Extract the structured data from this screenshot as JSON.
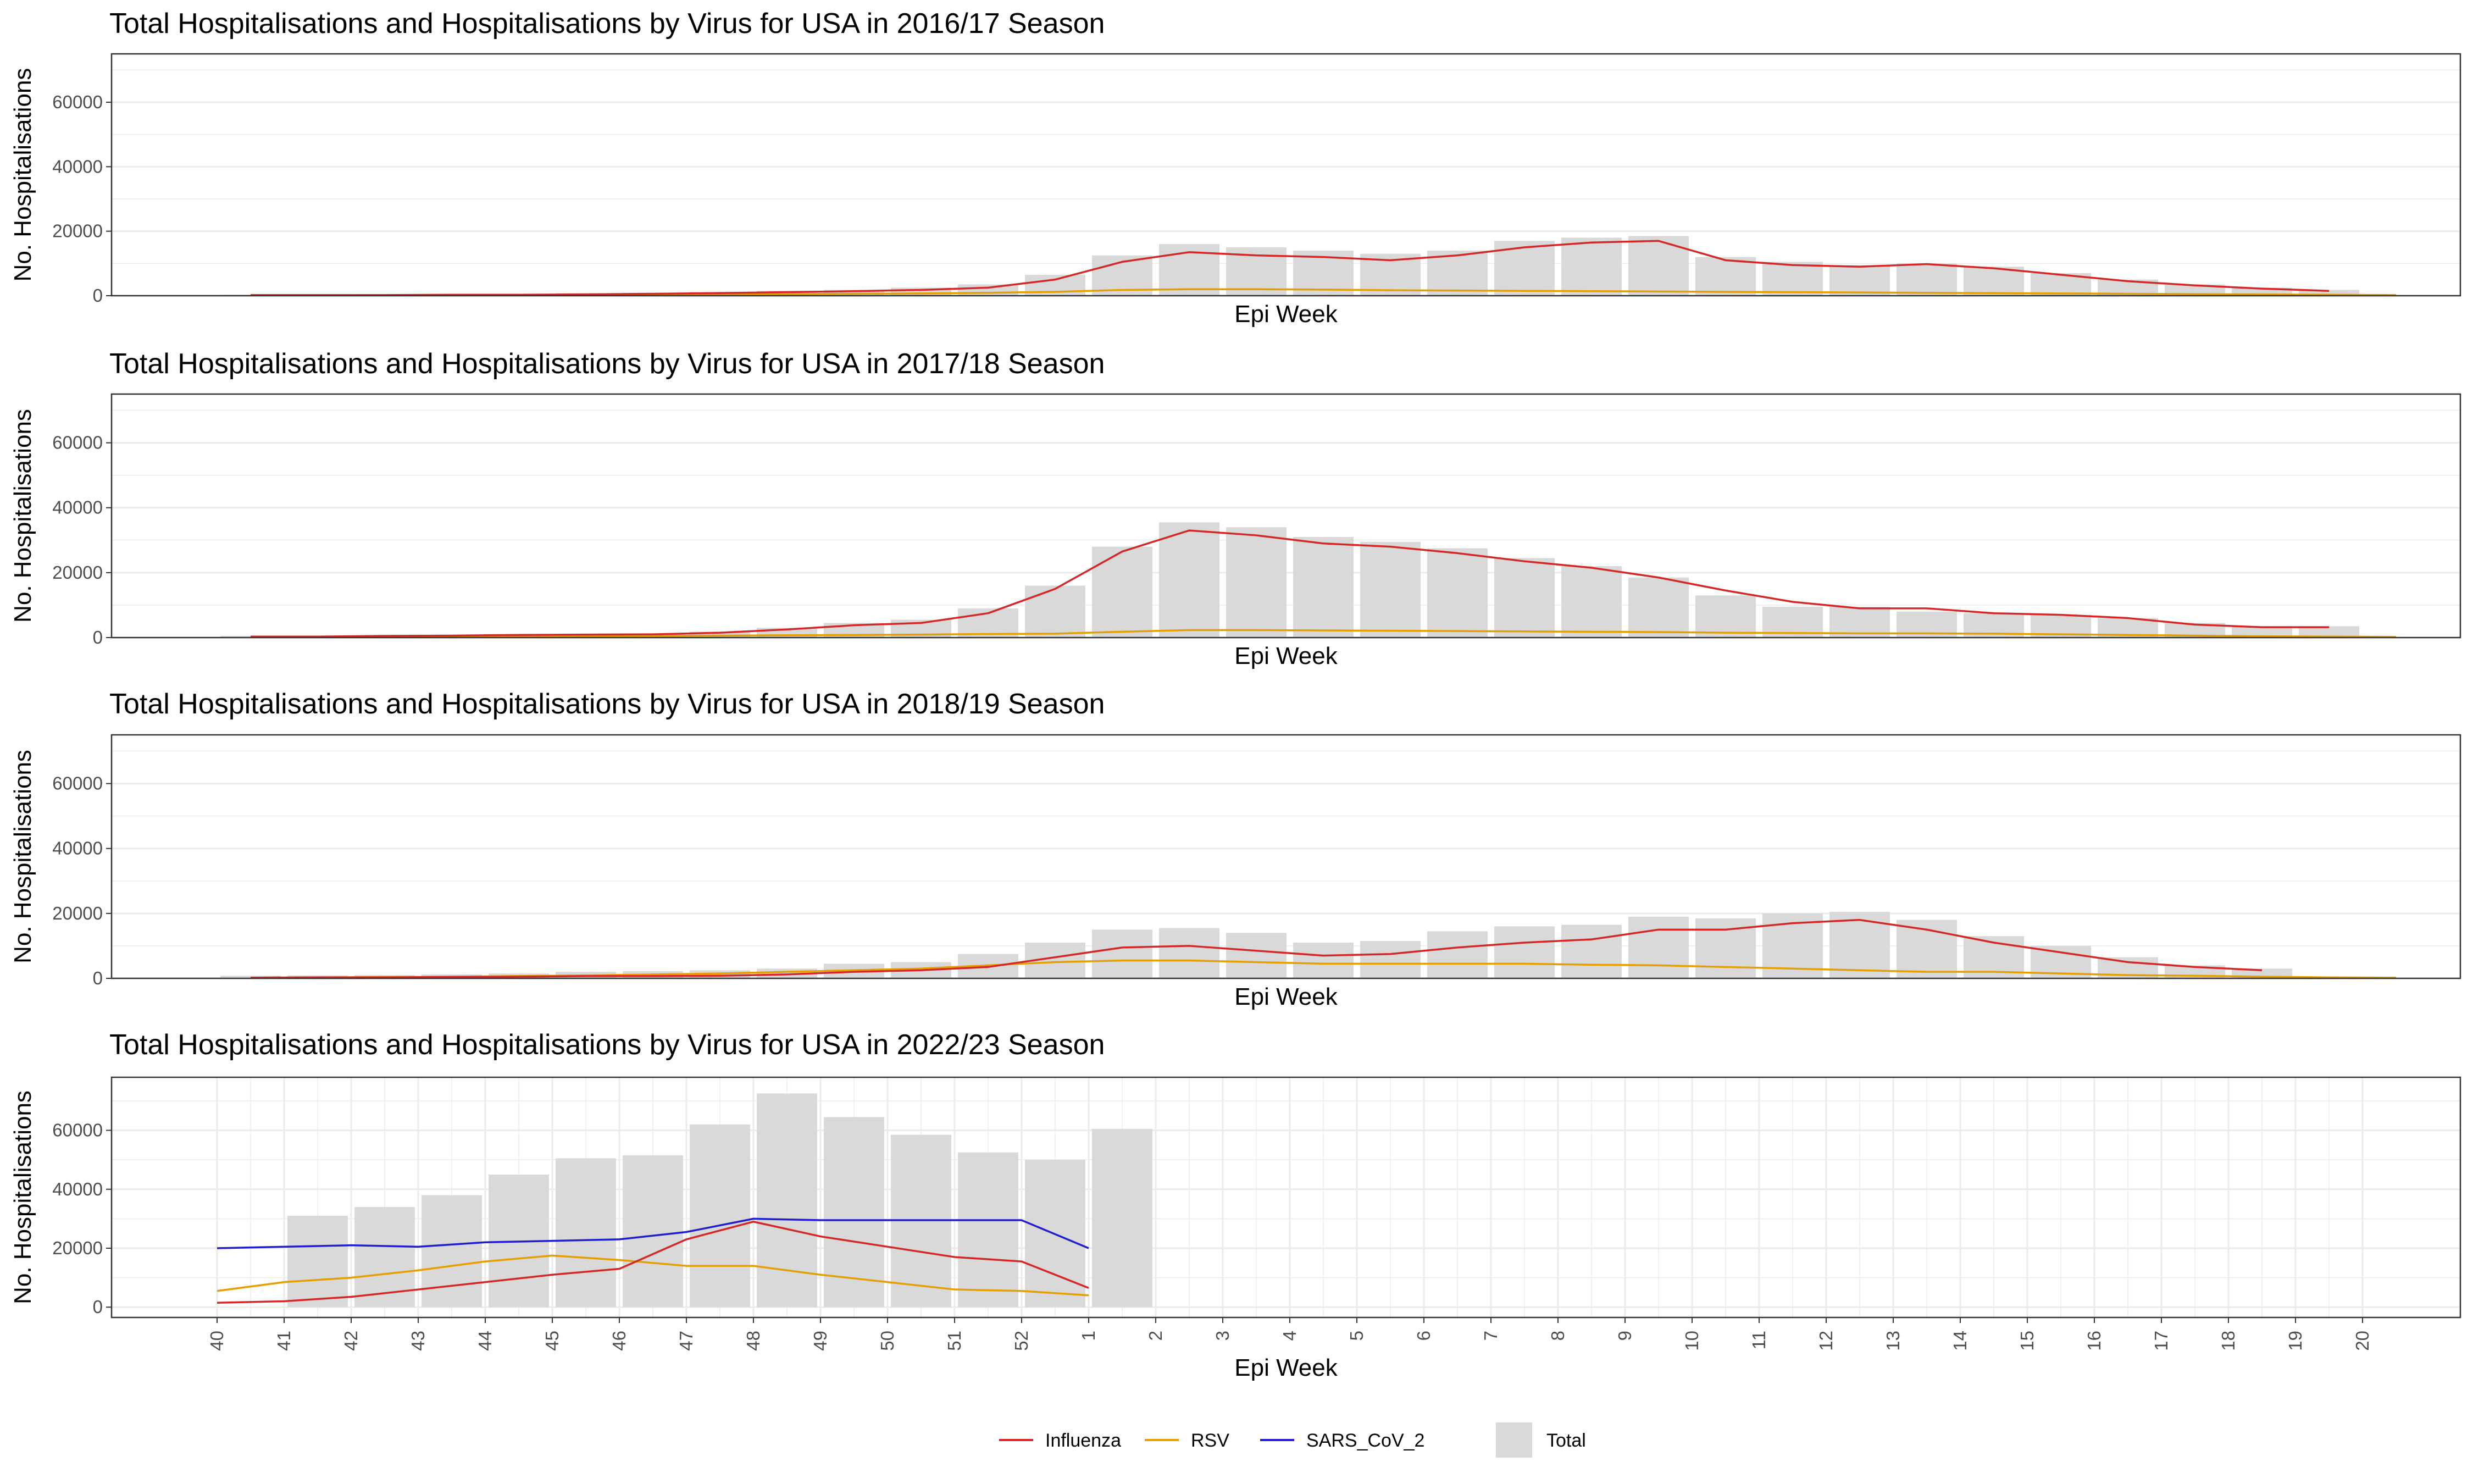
{
  "chart_data": [
    {
      "type": "bar",
      "title": "Total Hospitalisations and Hospitalisations by Virus for USA in 2016/17 Season",
      "xlabel": "Epi Week",
      "ylabel": "No. Hospitalisations",
      "ylim": [
        0,
        75000
      ],
      "yticks": [
        0,
        20000,
        40000,
        60000
      ],
      "show_x_ticks": false,
      "grid": true,
      "categories": [
        "40",
        "41",
        "42",
        "43",
        "44",
        "45",
        "46",
        "47",
        "48",
        "49",
        "50",
        "51",
        "52",
        "1",
        "2",
        "3",
        "4",
        "5",
        "6",
        "7",
        "8",
        "9",
        "10",
        "11",
        "12",
        "13",
        "14",
        "15",
        "16",
        "17",
        "18",
        "19",
        "20"
      ],
      "series": [
        {
          "name": "Total",
          "kind": "bar",
          "values": [
            300,
            400,
            500,
            500,
            600,
            800,
            900,
            1200,
            1500,
            1800,
            2500,
            3500,
            6500,
            12500,
            16000,
            15000,
            14000,
            13000,
            14000,
            17000,
            18000,
            18500,
            12000,
            10500,
            9500,
            10000,
            9000,
            7000,
            5000,
            3500,
            2500,
            1800,
            null
          ]
        },
        {
          "name": "Influenza",
          "kind": "line",
          "values": [
            200,
            200,
            200,
            300,
            300,
            400,
            600,
            800,
            1100,
            1400,
            1800,
            2500,
            5000,
            10500,
            13500,
            12500,
            12000,
            11000,
            12500,
            15000,
            16500,
            17000,
            11000,
            9500,
            9000,
            9800,
            8500,
            6500,
            4500,
            3200,
            2200,
            1500,
            null
          ]
        },
        {
          "name": "RSV",
          "kind": "line",
          "values": [
            100,
            100,
            100,
            100,
            200,
            200,
            300,
            400,
            500,
            600,
            700,
            900,
            1200,
            1800,
            2000,
            2000,
            1900,
            1700,
            1600,
            1500,
            1400,
            1300,
            1200,
            1100,
            1000,
            900,
            800,
            700,
            600,
            500,
            400,
            300,
            200
          ]
        }
      ]
    },
    {
      "type": "bar",
      "title": "Total Hospitalisations and Hospitalisations by Virus for USA in 2017/18 Season",
      "xlabel": "Epi Week",
      "ylabel": "No. Hospitalisations",
      "ylim": [
        0,
        75000
      ],
      "yticks": [
        0,
        20000,
        40000,
        60000
      ],
      "show_x_ticks": false,
      "grid": true,
      "categories": [
        "40",
        "41",
        "42",
        "43",
        "44",
        "45",
        "46",
        "47",
        "48",
        "49",
        "50",
        "51",
        "52",
        "1",
        "2",
        "3",
        "4",
        "5",
        "6",
        "7",
        "8",
        "9",
        "10",
        "11",
        "12",
        "13",
        "14",
        "15",
        "16",
        "17",
        "18",
        "19",
        "20"
      ],
      "series": [
        {
          "name": "Total",
          "kind": "bar",
          "values": [
            500,
            500,
            700,
            800,
            900,
            1000,
            1200,
            1800,
            3000,
            4500,
            5500,
            9000,
            16000,
            28000,
            35500,
            34000,
            31000,
            29500,
            27500,
            24500,
            22000,
            18500,
            13000,
            9500,
            9500,
            8000,
            7500,
            7000,
            6000,
            4500,
            3500,
            3500,
            null
          ]
        },
        {
          "name": "Influenza",
          "kind": "line",
          "values": [
            300,
            300,
            500,
            600,
            800,
            900,
            1000,
            1500,
            2500,
            3800,
            4500,
            7500,
            15000,
            26500,
            33000,
            31500,
            29000,
            28000,
            26000,
            23500,
            21500,
            18500,
            14500,
            11000,
            9000,
            9000,
            7500,
            7000,
            6000,
            4000,
            3200,
            3200,
            null
          ]
        },
        {
          "name": "RSV",
          "kind": "line",
          "values": [
            200,
            200,
            300,
            300,
            400,
            400,
            500,
            600,
            700,
            800,
            900,
            1100,
            1200,
            1800,
            2300,
            2300,
            2200,
            2100,
            2000,
            1900,
            1800,
            1700,
            1500,
            1400,
            1300,
            1300,
            1200,
            1000,
            800,
            600,
            400,
            300,
            200
          ]
        }
      ]
    },
    {
      "type": "bar",
      "title": "Total Hospitalisations and Hospitalisations by Virus for USA in 2018/19 Season",
      "xlabel": "Epi Week",
      "ylabel": "No. Hospitalisations",
      "ylim": [
        0,
        75000
      ],
      "yticks": [
        0,
        20000,
        40000,
        60000
      ],
      "show_x_ticks": false,
      "grid": true,
      "categories": [
        "40",
        "41",
        "42",
        "43",
        "44",
        "45",
        "46",
        "47",
        "48",
        "49",
        "50",
        "51",
        "52",
        "1",
        "2",
        "3",
        "4",
        "5",
        "6",
        "7",
        "8",
        "9",
        "10",
        "11",
        "12",
        "13",
        "14",
        "15",
        "16",
        "17",
        "18",
        "19",
        "20"
      ],
      "series": [
        {
          "name": "Total",
          "kind": "bar",
          "values": [
            800,
            900,
            1000,
            1200,
            1500,
            2000,
            2200,
            2500,
            3000,
            4500,
            5000,
            7500,
            11000,
            15000,
            15500,
            14000,
            11000,
            11500,
            14500,
            16000,
            16500,
            19000,
            18500,
            20000,
            20500,
            18000,
            13000,
            10000,
            6500,
            4000,
            3000,
            null,
            null
          ]
        },
        {
          "name": "Influenza",
          "kind": "line",
          "values": [
            200,
            300,
            300,
            400,
            500,
            700,
            700,
            800,
            1200,
            2000,
            2500,
            3500,
            6500,
            9500,
            10000,
            8500,
            7000,
            7500,
            9500,
            11000,
            12000,
            15000,
            15000,
            17000,
            18000,
            15000,
            11000,
            8000,
            5000,
            3500,
            2500,
            null,
            null
          ]
        },
        {
          "name": "RSV",
          "kind": "line",
          "values": [
            200,
            300,
            400,
            500,
            700,
            900,
            1200,
            1500,
            2000,
            2500,
            3000,
            4000,
            5000,
            5500,
            5500,
            5000,
            4500,
            4500,
            4500,
            4500,
            4200,
            4000,
            3500,
            3000,
            2500,
            2000,
            2000,
            1500,
            1000,
            800,
            500,
            300,
            200
          ]
        }
      ]
    },
    {
      "type": "bar",
      "title": "Total Hospitalisations and Hospitalisations by Virus for USA in 2022/23 Season",
      "xlabel": "Epi Week",
      "ylabel": "No. Hospitalisations",
      "ylim": [
        -3500,
        78000
      ],
      "yticks": [
        0,
        20000,
        40000,
        60000
      ],
      "show_x_ticks": true,
      "grid": true,
      "categories": [
        "40",
        "41",
        "42",
        "43",
        "44",
        "45",
        "46",
        "47",
        "48",
        "49",
        "50",
        "51",
        "52",
        "1",
        "2",
        "3",
        "4",
        "5",
        "6",
        "7",
        "8",
        "9",
        "10",
        "11",
        "12",
        "13",
        "14",
        "15",
        "16",
        "17",
        "18",
        "19",
        "20"
      ],
      "series": [
        {
          "name": "Total",
          "kind": "bar",
          "values": [
            null,
            31000,
            34000,
            38000,
            45000,
            50500,
            51500,
            62000,
            72500,
            64500,
            58500,
            52500,
            50000,
            60500,
            null,
            null,
            null,
            null,
            null,
            null,
            null,
            null,
            null,
            null,
            null,
            null,
            null,
            null,
            null,
            null,
            null,
            null,
            null
          ]
        },
        {
          "name": "Influenza",
          "kind": "line",
          "values": [
            1500,
            2000,
            3500,
            6000,
            8500,
            11000,
            13000,
            23000,
            29000,
            24000,
            20500,
            17000,
            15500,
            6500,
            null,
            null,
            null,
            null,
            null,
            null,
            null,
            null,
            null,
            null,
            null,
            null,
            null,
            null,
            null,
            null,
            null,
            null,
            null
          ]
        },
        {
          "name": "RSV",
          "kind": "line",
          "values": [
            5500,
            8500,
            10000,
            12500,
            15500,
            17500,
            16000,
            14000,
            14000,
            11000,
            8500,
            6000,
            5500,
            4000,
            null,
            null,
            null,
            null,
            null,
            null,
            null,
            null,
            null,
            null,
            null,
            null,
            null,
            null,
            null,
            null,
            null,
            null,
            null
          ]
        },
        {
          "name": "SARS_CoV_2",
          "kind": "line",
          "values": [
            20000,
            20500,
            21000,
            20500,
            22000,
            22500,
            23000,
            25500,
            30000,
            29500,
            29500,
            29500,
            29500,
            20000,
            null,
            null,
            null,
            null,
            null,
            null,
            null,
            null,
            null,
            null,
            null,
            null,
            null,
            null,
            null,
            null,
            null,
            null,
            null
          ]
        }
      ]
    }
  ],
  "legend": {
    "items": [
      {
        "label": "Influenza",
        "type": "line",
        "color": "#d62728"
      },
      {
        "label": "RSV",
        "type": "line",
        "color": "#e69f00"
      },
      {
        "label": "SARS_CoV_2",
        "type": "line",
        "color": "#1f1fcf"
      },
      {
        "label": "Total",
        "type": "bar",
        "color": "#d9d9d9"
      }
    ],
    "position": "bottom"
  },
  "colors": {
    "Influenza": "#d62728",
    "RSV": "#e69f00",
    "SARS_CoV_2": "#1f1fcf",
    "Total": "#d9d9d9",
    "grid": "#ebebeb",
    "panel_border": "#333333"
  }
}
